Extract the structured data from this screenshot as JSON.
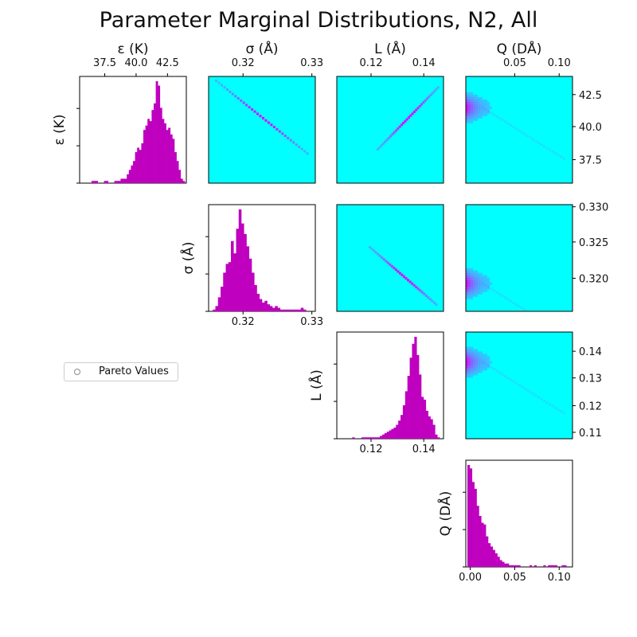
{
  "title": "Parameter Marginal Distributions, N2, All",
  "legend": {
    "label": "Pareto Values",
    "marker": "hollow-circle"
  },
  "colors": {
    "histogram": "#bf00bf",
    "density_background": "#00ffff",
    "density_high": "#e000ff"
  },
  "chart_data": {
    "type": "histogram",
    "layout": "corner-plot",
    "parameters": [
      {
        "key": "eps",
        "label": "ε (K)",
        "range": [
          35.5,
          44
        ],
        "ticks": [
          37.5,
          40.0,
          42.5
        ],
        "tick_labels": [
          "37.5",
          "40.0",
          "42.5"
        ],
        "peak": 41.6,
        "counts": [
          0,
          0,
          0,
          0,
          0,
          1,
          1,
          1,
          0,
          0,
          0,
          1,
          1,
          0,
          0,
          0,
          1,
          1,
          1,
          2,
          2,
          2,
          4,
          6,
          8,
          10,
          14,
          16,
          15,
          18,
          24,
          26,
          29,
          28,
          33,
          36,
          46,
          44,
          34,
          29,
          27,
          24,
          25,
          22,
          20,
          14,
          10,
          6,
          2,
          1
        ]
      },
      {
        "key": "sigma",
        "label": "σ (Å)",
        "range": [
          0.315,
          0.3305
        ],
        "ticks": [
          0.32,
          0.33
        ],
        "tick_labels": [
          "0.32",
          "0.33"
        ],
        "peak": 0.3192,
        "counts": [
          0,
          1,
          3,
          8,
          14,
          22,
          27,
          28,
          40,
          33,
          47,
          58,
          50,
          44,
          37,
          30,
          22,
          15,
          10,
          7,
          5,
          6,
          4,
          3,
          2,
          3,
          2,
          1,
          1,
          1,
          1,
          1,
          1,
          1,
          1,
          2,
          1,
          0,
          0,
          0
        ]
      },
      {
        "key": "L",
        "label": "L (Å)",
        "range": [
          0.107,
          0.1475
        ],
        "ticks": [
          0.12,
          0.14
        ],
        "tick_labels": [
          "0.12",
          "0.14"
        ],
        "peak": 0.1365,
        "counts": [
          0,
          0,
          0,
          0,
          0,
          0,
          1,
          0,
          0,
          0,
          1,
          1,
          1,
          1,
          1,
          1,
          1,
          1,
          2,
          3,
          4,
          5,
          6,
          7,
          8,
          10,
          13,
          17,
          24,
          34,
          45,
          58,
          68,
          73,
          60,
          46,
          30,
          28,
          20,
          16,
          14,
          10,
          3,
          1,
          0
        ]
      },
      {
        "key": "Q",
        "label": "Q (DÅ)",
        "range": [
          -0.005,
          0.115
        ],
        "ticks": [
          0.0,
          0.05,
          0.1
        ],
        "tick_labels": [
          "0.00",
          "0.05",
          "0.10"
        ],
        "tick_labels_top": [
          "0.05",
          "0.10"
        ],
        "peak": 0.005,
        "counts": [
          60,
          58,
          50,
          46,
          36,
          30,
          26,
          25,
          18,
          14,
          12,
          10,
          8,
          6,
          4,
          3,
          2,
          2,
          1,
          1,
          1,
          1,
          1,
          0,
          0,
          0,
          0,
          1,
          0,
          1,
          0,
          0,
          0,
          1,
          0,
          1,
          1,
          1,
          1,
          0,
          0,
          1,
          1,
          0,
          0
        ]
      }
    ],
    "density_pairs": [
      {
        "row": "eps",
        "col": "sigma",
        "correlation": "negative"
      },
      {
        "row": "eps",
        "col": "L",
        "correlation": "positive"
      },
      {
        "row": "eps",
        "col": "Q",
        "correlation": "none"
      },
      {
        "row": "sigma",
        "col": "L",
        "correlation": "negative"
      },
      {
        "row": "sigma",
        "col": "Q",
        "correlation": "none"
      },
      {
        "row": "L",
        "col": "Q",
        "correlation": "none"
      }
    ],
    "right_axis_ticks": {
      "eps": [
        "42.5",
        "40.0",
        "37.5"
      ],
      "sigma": [
        "0.330",
        "0.325",
        "0.320"
      ],
      "L": [
        "0.14",
        "0.13",
        "0.12",
        "0.11"
      ]
    }
  }
}
